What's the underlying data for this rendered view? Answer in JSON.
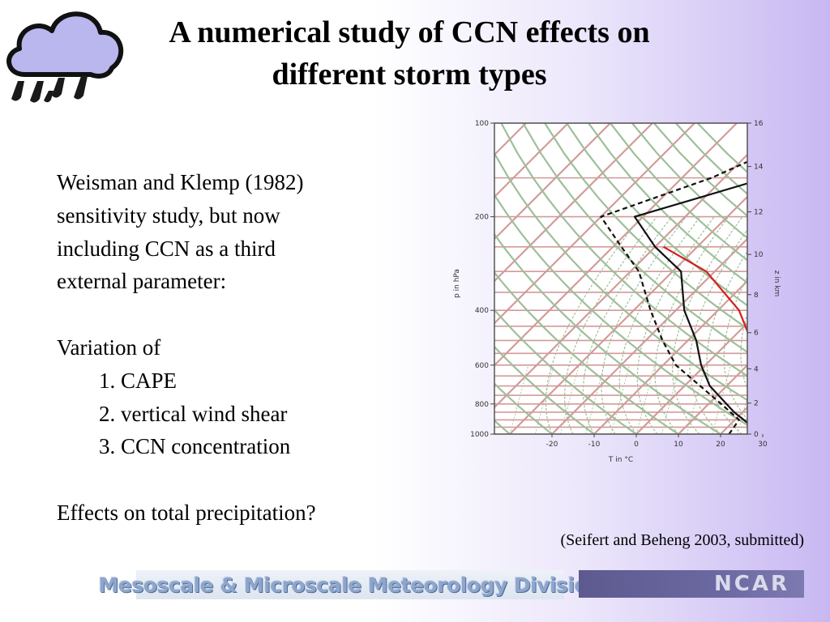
{
  "slide": {
    "title_line1": "A numerical study of CCN effects on",
    "title_line2": "different storm types",
    "body": {
      "line1": "Weisman and Klemp (1982)",
      "line2": "sensitivity study, but now",
      "line3": "including CCN as a third",
      "line4": "external parameter:",
      "variation_heading": "Variation of",
      "items": [
        "1. CAPE",
        "2. vertical wind shear",
        "3. CCN concentration"
      ],
      "question": "Effects on total precipitation?"
    },
    "credit": "(Seifert and Beheng 2003, submitted)",
    "footer_left": "Mesoscale & Microscale Meteorology Division",
    "footer_right": "NCAR"
  },
  "chart_data": {
    "type": "line",
    "title": "",
    "xlabel": "T in °C",
    "ylabel": "p in hPa",
    "y2label": "z in km",
    "pressure_ticks": [
      "100",
      "200",
      "400",
      "600",
      "800",
      "1000"
    ],
    "temperature_ticks": [
      "-20",
      "-10",
      "0",
      "10",
      "20",
      "30"
    ],
    "height_ticks": [
      "0",
      "2",
      "4",
      "6",
      "8",
      "10",
      "12",
      "14",
      "16"
    ],
    "series": [
      {
        "style": "black solid",
        "color": "#111111",
        "dash": "none",
        "points": [
          [
            1000,
            27
          ],
          [
            950,
            26
          ],
          [
            850,
            18
          ],
          [
            700,
            6
          ],
          [
            600,
            -1
          ],
          [
            500,
            -8
          ],
          [
            400,
            -18
          ],
          [
            300,
            -28
          ],
          [
            250,
            -40
          ],
          [
            200,
            -52
          ],
          [
            150,
            -30
          ],
          [
            100,
            -10
          ]
        ]
      },
      {
        "style": "black dashed",
        "color": "#111111",
        "dash": "6,4",
        "points": [
          [
            1000,
            22
          ],
          [
            900,
            21
          ],
          [
            800,
            13
          ],
          [
            600,
            -7
          ],
          [
            500,
            -16
          ],
          [
            400,
            -26
          ],
          [
            300,
            -38
          ],
          [
            250,
            -48
          ],
          [
            200,
            -60
          ],
          [
            150,
            -43
          ],
          [
            100,
            -27
          ]
        ]
      },
      {
        "style": "red solid",
        "color": "#d41e1e",
        "dash": "none",
        "points": [
          [
            850,
            21
          ],
          [
            800,
            22
          ],
          [
            700,
            20
          ],
          [
            600,
            14
          ],
          [
            500,
            5
          ],
          [
            400,
            -5
          ],
          [
            300,
            -22
          ],
          [
            250,
            -38
          ]
        ]
      }
    ],
    "colors": {
      "isotherm": "#d39a9a",
      "adiabat": "#9ebf9a",
      "frame": "#555555"
    }
  }
}
